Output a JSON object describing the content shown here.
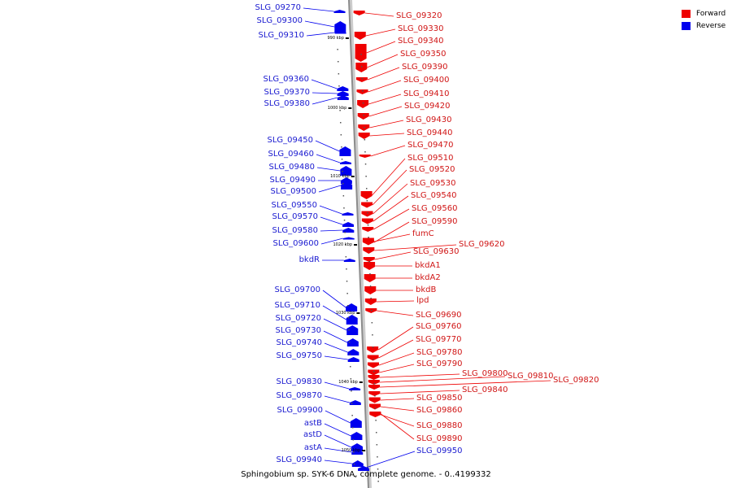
{
  "legend": [
    {
      "label": "Forward",
      "color": "#ee0000"
    },
    {
      "label": "Reverse",
      "color": "#0000ee"
    }
  ],
  "caption": "Sphingobium sp. SYK-6 DNA, complete genome. - 0..4199332",
  "colors": {
    "forward": "#ee0000",
    "reverse": "#0000ee",
    "axis": "#999999"
  },
  "ticks": [
    "990 kbp",
    "1000 kbp",
    "1010 kbp",
    "1020 kbp",
    "1030 kbp",
    "1040 kbp",
    "1050 kbp"
  ],
  "forward_genes": [
    "SLG_09320",
    "SLG_09330",
    "SLG_09340",
    "SLG_09350",
    "SLG_09390",
    "SLG_09400",
    "SLG_09410",
    "SLG_09420",
    "SLG_09430",
    "SLG_09440",
    "SLG_09470",
    "SLG_09510",
    "SLG_09520",
    "SLG_09530",
    "SLG_09540",
    "SLG_09560",
    "SLG_09590",
    "fumC",
    "SLG_09620",
    "SLG_09630",
    "bkdA1",
    "bkdA2",
    "bkdB",
    "lpd",
    "SLG_09690",
    "SLG_09760",
    "SLG_09770",
    "SLG_09780",
    "SLG_09790",
    "SLG_09800",
    "SLG_09810",
    "SLG_09820",
    "SLG_09840",
    "SLG_09850",
    "SLG_09860",
    "SLG_09880",
    "SLG_09890"
  ],
  "reverse_genes": [
    "SLG_09270",
    "SLG_09300",
    "SLG_09310",
    "SLG_09360",
    "SLG_09370",
    "SLG_09380",
    "SLG_09450",
    "SLG_09460",
    "SLG_09480",
    "SLG_09490",
    "SLG_09500",
    "SLG_09550",
    "SLG_09570",
    "SLG_09580",
    "SLG_09600",
    "bkdR",
    "SLG_09700",
    "SLG_09710",
    "SLG_09720",
    "SLG_09730",
    "SLG_09740",
    "SLG_09750",
    "SLG_09830",
    "SLG_09870",
    "SLG_09900",
    "astB",
    "astD",
    "astA",
    "SLG_09940",
    "SLG_09950"
  ]
}
